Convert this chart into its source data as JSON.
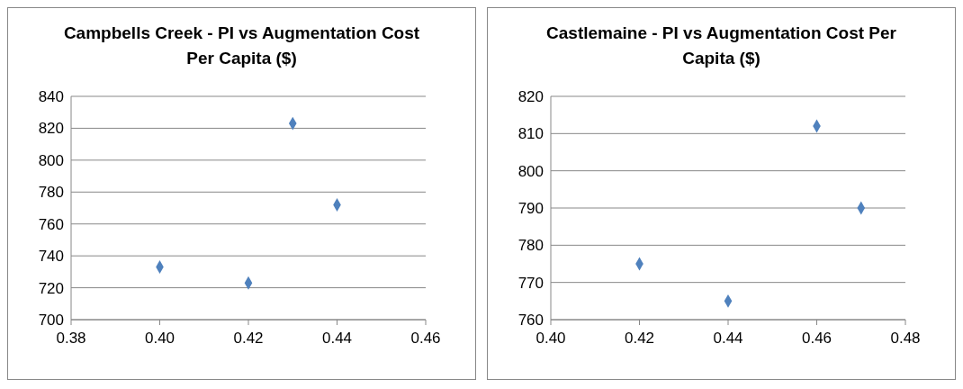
{
  "chart_data": [
    {
      "type": "scatter",
      "title": "Campbells Creek - PI vs Augmentation Cost Per Capita ($)",
      "x": [
        0.4,
        0.42,
        0.43,
        0.44
      ],
      "series": [
        {
          "color": "#4f81bd",
          "values": [
            733,
            723,
            823,
            772
          ]
        }
      ],
      "xlim": [
        0.38,
        0.46
      ],
      "xticks": [
        {
          "value": 0.38,
          "label": "0.38"
        },
        {
          "value": 0.4,
          "label": "0.40"
        },
        {
          "value": 0.42,
          "label": "0.42"
        },
        {
          "value": 0.44,
          "label": "0.44"
        },
        {
          "value": 0.46,
          "label": "0.46"
        }
      ],
      "ylim": [
        700,
        840
      ],
      "yticks": [
        700,
        720,
        740,
        760,
        780,
        800,
        820,
        840
      ],
      "grid": "y",
      "marker": "diamond",
      "legend": false
    },
    {
      "type": "scatter",
      "title": "Castlemaine - PI vs Augmentation Cost Per Capita ($)",
      "x": [
        0.42,
        0.44,
        0.46,
        0.47
      ],
      "series": [
        {
          "color": "#4f81bd",
          "values": [
            775,
            765,
            812,
            790
          ]
        }
      ],
      "xlim": [
        0.4,
        0.48
      ],
      "xticks": [
        {
          "value": 0.4,
          "label": "0.40"
        },
        {
          "value": 0.42,
          "label": "0.42"
        },
        {
          "value": 0.44,
          "label": "0.44"
        },
        {
          "value": 0.46,
          "label": "0.46"
        },
        {
          "value": 0.48,
          "label": "0.48"
        }
      ],
      "ylim": [
        760,
        820
      ],
      "yticks": [
        760,
        770,
        780,
        790,
        800,
        810,
        820
      ],
      "grid": "y",
      "marker": "diamond",
      "legend": false
    }
  ]
}
